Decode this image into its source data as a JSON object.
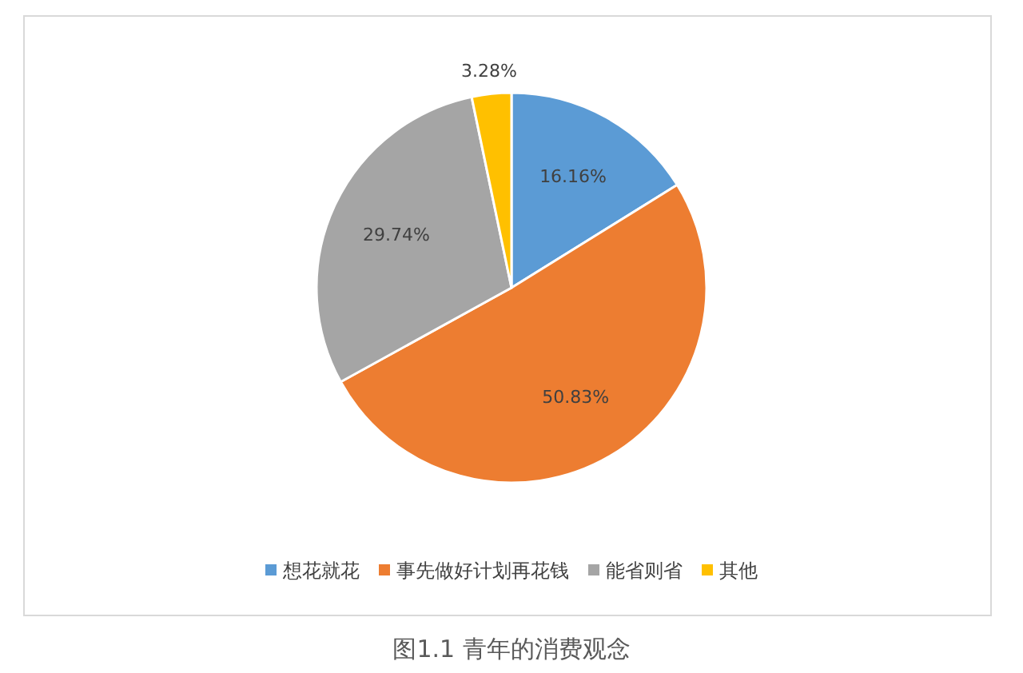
{
  "chart_data": {
    "type": "pie",
    "title": "图1.1 青年的消费观念",
    "categories": [
      "想花就花",
      "事先做好计划再花钱",
      "能省则省",
      "其他"
    ],
    "values": [
      16.16,
      50.83,
      29.74,
      3.28
    ],
    "colors": [
      "#5b9bd5",
      "#ed7d31",
      "#a5a5a5",
      "#ffc000"
    ],
    "value_labels": [
      "16.16%",
      "50.83%",
      "29.74%",
      "3.28%"
    ],
    "legend": "bottom"
  }
}
